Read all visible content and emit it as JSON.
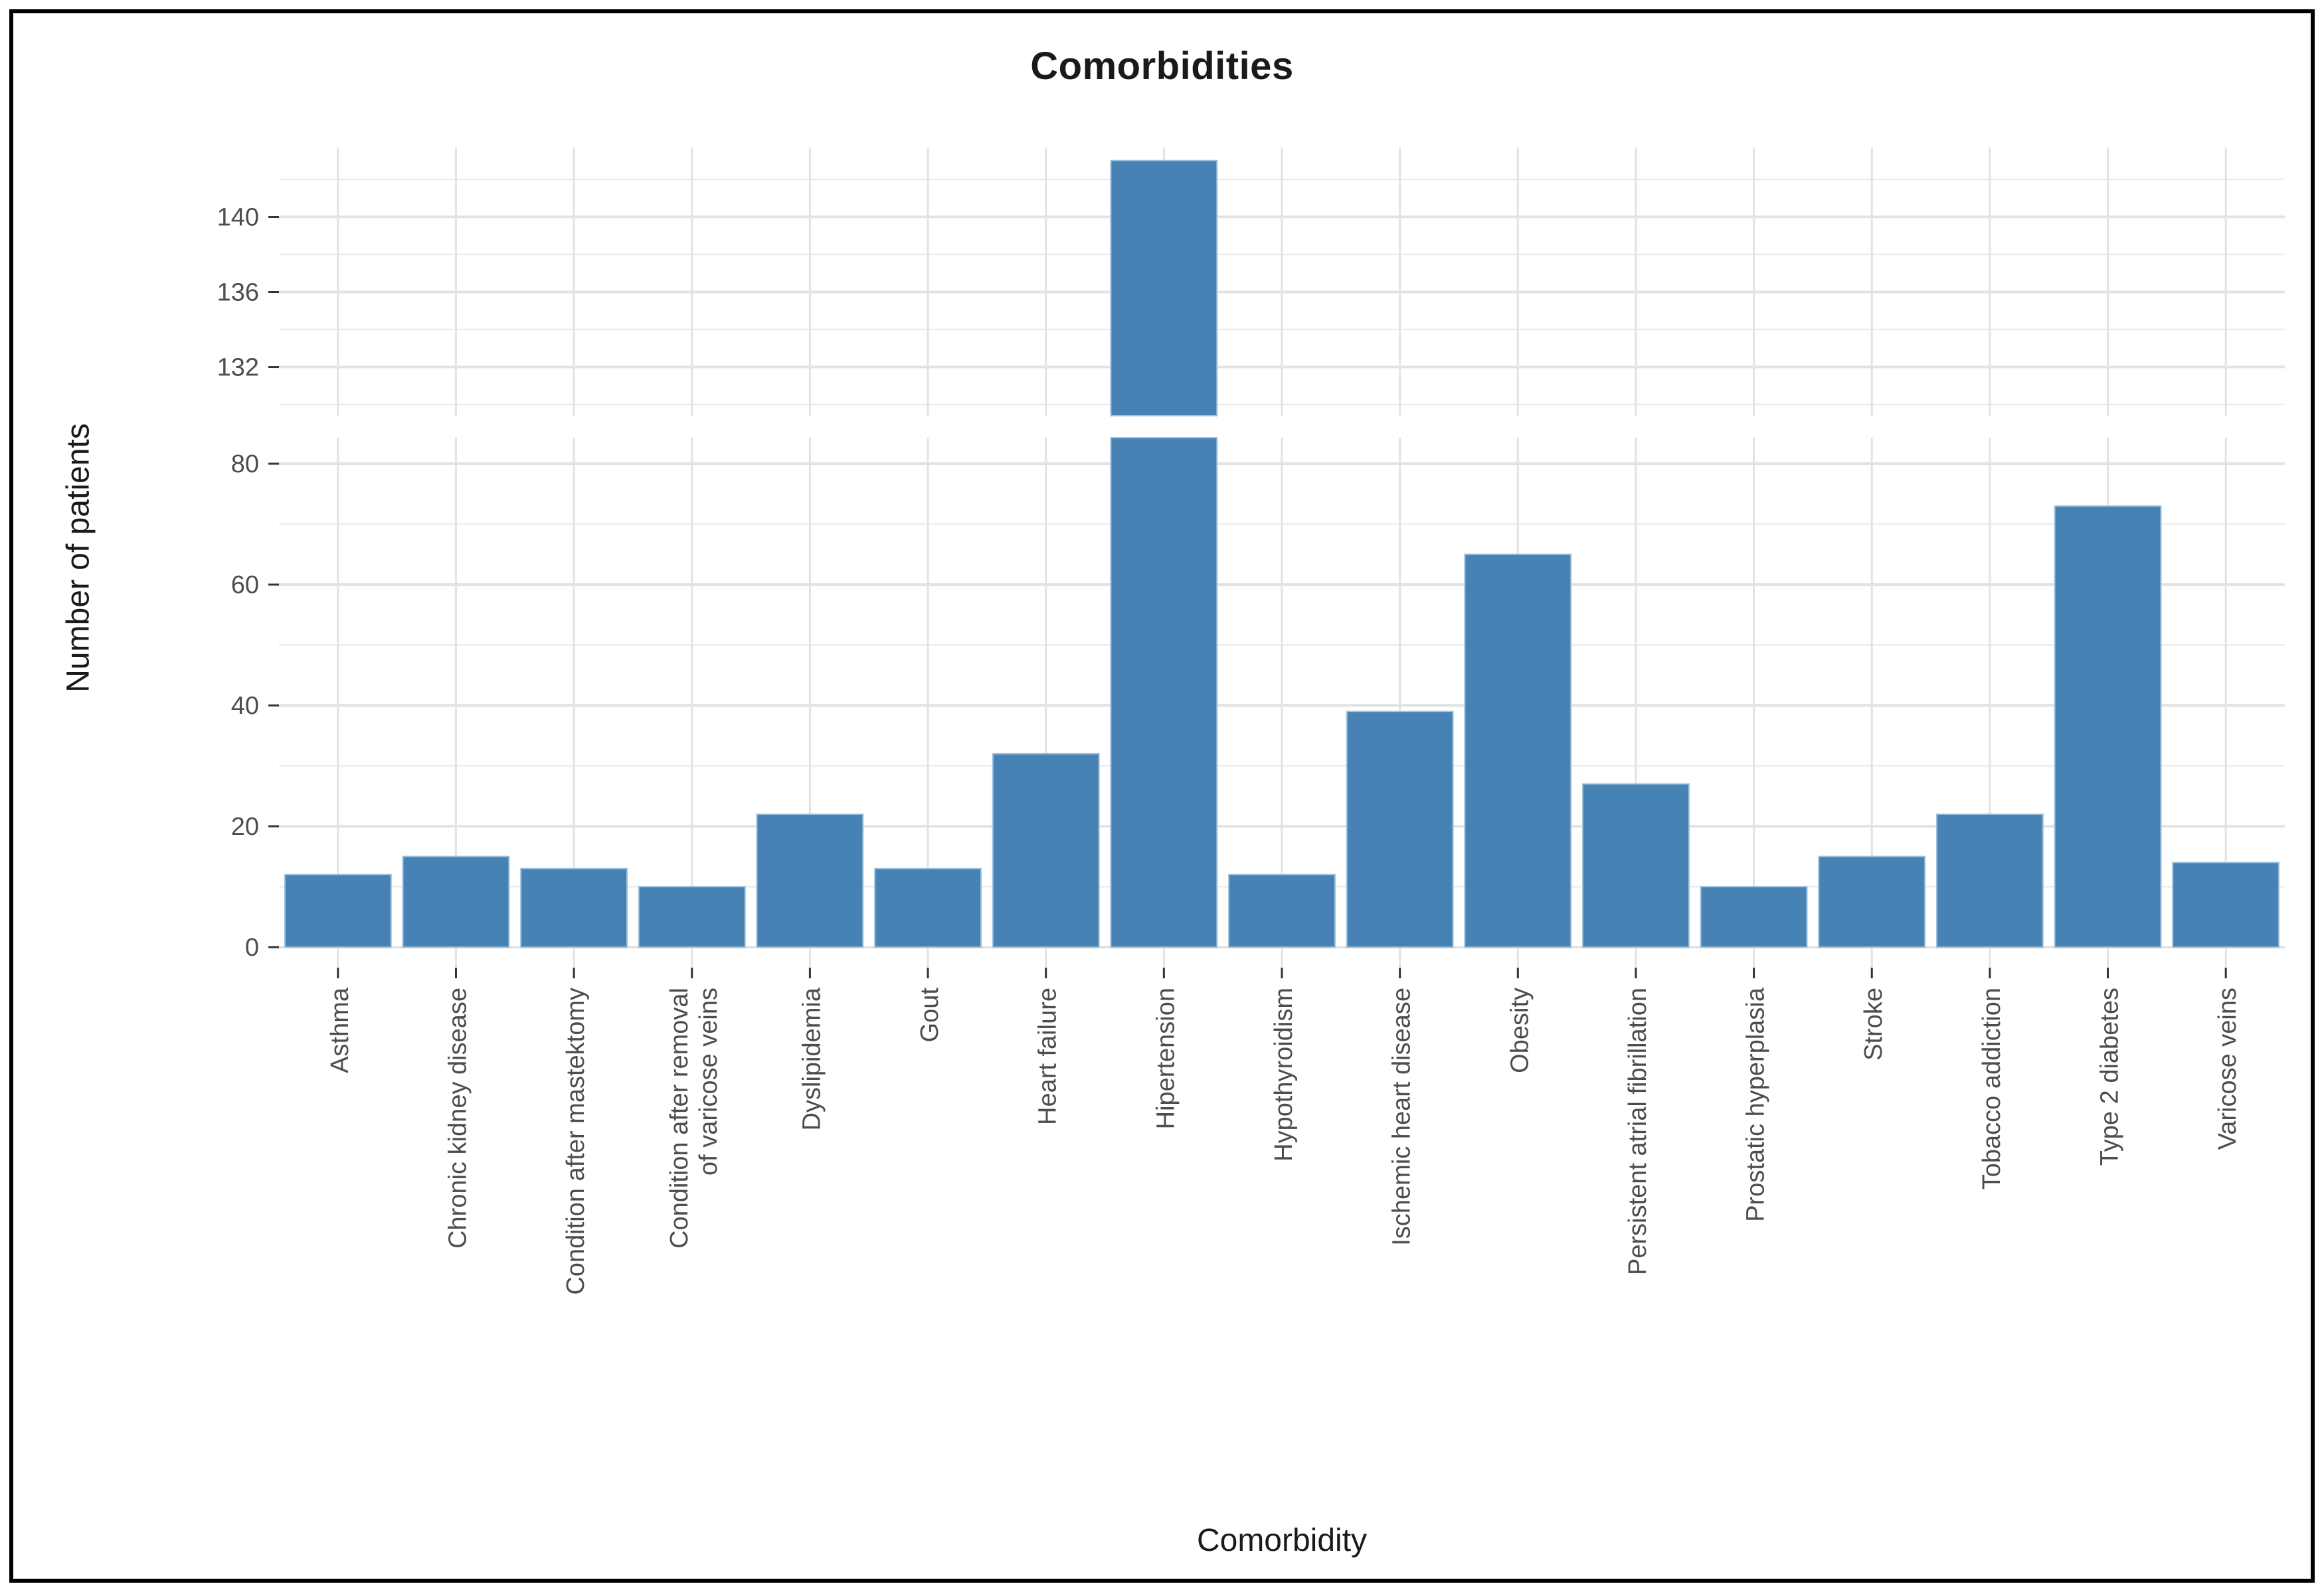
{
  "frame": {
    "border_color": "#000000",
    "background": "#ffffff"
  },
  "chart_data": {
    "type": "bar",
    "title": "Comorbidities",
    "xlabel": "Comorbidity",
    "ylabel": "Number of patients",
    "categories": [
      "Asthma",
      "Chronic kidney disease",
      "Condition after mastektomy",
      "Condition after removal\nof varicose veins",
      "Dyslipidemia",
      "Gout",
      "Heart failure",
      "Hipertension",
      "Hypothyroidism",
      "Ischemic heart disease",
      "Obesity",
      "Persistent atrial fibrillation",
      "Prostatic hyperplasia",
      "Stroke",
      "Tobacco addiction",
      "Type 2 diabetes",
      "Varicose veins"
    ],
    "values": [
      12,
      15,
      13,
      10,
      22,
      13,
      32,
      143,
      12,
      39,
      65,
      27,
      10,
      15,
      22,
      73,
      14
    ],
    "bar_color": "#4682B4",
    "bar_border_color": "#9CC2DE",
    "grid": true,
    "legend": false,
    "broken_y_axis": {
      "lower_panel": {
        "ticks": [
          0,
          20,
          40,
          60,
          80
        ],
        "minor_ticks": [
          10,
          30,
          50,
          70
        ],
        "range": [
          -3.4,
          84.3
        ]
      },
      "upper_panel": {
        "ticks": [
          132,
          136,
          140
        ],
        "minor_ticks": [
          130,
          134,
          138,
          142
        ],
        "range": [
          129.4,
          143.7
        ]
      }
    },
    "tick_label_color": "#4d4d4d",
    "text_color": "#1a1a1a",
    "grid_major_color": "#e3e3e3",
    "grid_minor_color": "#ededed",
    "tick_mark_color": "#333333"
  }
}
